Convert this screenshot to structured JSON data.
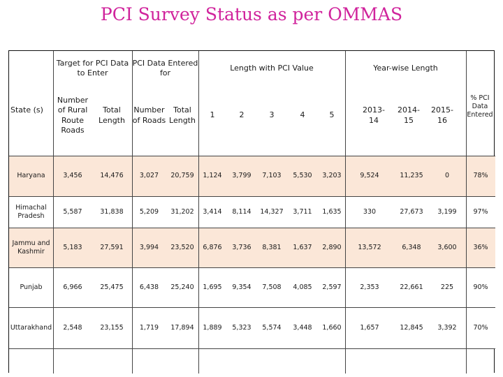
{
  "title": "PCI Survey Status as per OMMAS",
  "groups": {
    "target": "Target for PCI Data to Enter",
    "entered": "PCI Data Entered for",
    "length_pci": "Length with PCI Value",
    "yearwise": "Year-wise Length"
  },
  "columns": {
    "state": "State (s)",
    "rural_roads": "Number of Rural Route Roads",
    "total_length_1": "Total Length",
    "num_roads": "Number of Roads",
    "total_length_2": "Total Length",
    "pci1": "1",
    "pci2": "2",
    "pci3": "3",
    "pci4": "4",
    "pci5": "5",
    "y2013": "2013-14",
    "y2014": "2014-15",
    "y2015": "2015-16",
    "pct": "% PCI Data Entered"
  },
  "rows": [
    {
      "state": "Haryana",
      "v": [
        "3,456",
        "14,476",
        "3,027",
        "20,759",
        "1,124",
        "3,799",
        "7,103",
        "5,530",
        "3,203",
        "9,524",
        "11,235",
        "0",
        "78%"
      ]
    },
    {
      "state": "Himachal Pradesh",
      "v": [
        "5,587",
        "31,838",
        "5,209",
        "31,202",
        "3,414",
        "8,114",
        "14,327",
        "3,711",
        "1,635",
        "330",
        "27,673",
        "3,199",
        "97%"
      ]
    },
    {
      "state": "Jammu and Kashmir",
      "v": [
        "5,183",
        "27,591",
        "3,994",
        "23,520",
        "6,876",
        "3,736",
        "8,381",
        "1,637",
        "2,890",
        "13,572",
        "6,348",
        "3,600",
        "36%"
      ]
    },
    {
      "state": "Punjab",
      "v": [
        "6,966",
        "25,475",
        "6,438",
        "25,240",
        "1,695",
        "9,354",
        "7,508",
        "4,085",
        "2,597",
        "2,353",
        "22,661",
        "225",
        "90%"
      ]
    },
    {
      "state": "Uttarakhand",
      "v": [
        "2,548",
        "23,155",
        "1,719",
        "17,894",
        "1,889",
        "5,323",
        "5,574",
        "3,448",
        "1,660",
        "1,657",
        "12,845",
        "3,392",
        "70%"
      ]
    }
  ]
}
